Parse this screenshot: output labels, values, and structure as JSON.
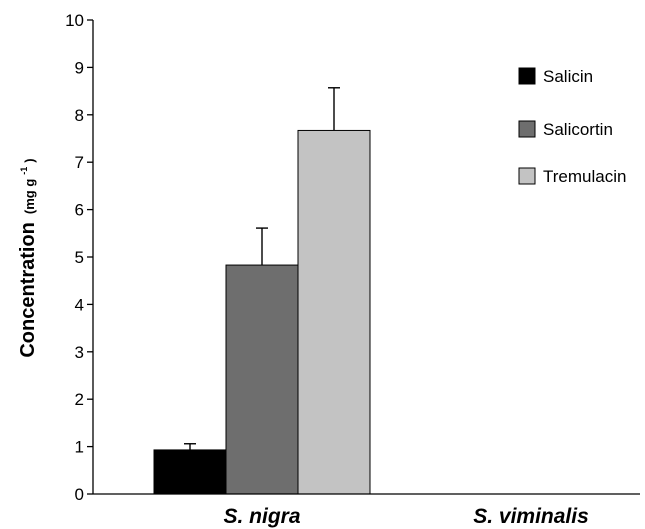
{
  "chart_data": {
    "type": "bar",
    "categories": [
      "S. nigra",
      "S. viminalis"
    ],
    "series": [
      {
        "name": "Salicin",
        "color": "#000000",
        "values": [
          0.93,
          0
        ],
        "errors": [
          0.13,
          0
        ]
      },
      {
        "name": "Salicortin",
        "color": "#6e6e6e",
        "values": [
          4.83,
          0
        ],
        "errors": [
          0.78,
          0
        ]
      },
      {
        "name": "Tremulacin",
        "color": "#c3c3c3",
        "values": [
          7.67,
          0
        ],
        "errors": [
          0.9,
          0
        ]
      }
    ],
    "ylabel": {
      "main": "Concentration",
      "unit_open": "(mg g",
      "unit_sup": "-1",
      "unit_close": ")"
    },
    "xlabel": "",
    "title": "",
    "ylim": [
      0,
      10
    ],
    "yticks": [
      "0",
      "1",
      "2",
      "3",
      "4",
      "5",
      "6",
      "7",
      "8",
      "9",
      "10"
    ],
    "grid": false,
    "legend_position": "top-right"
  }
}
